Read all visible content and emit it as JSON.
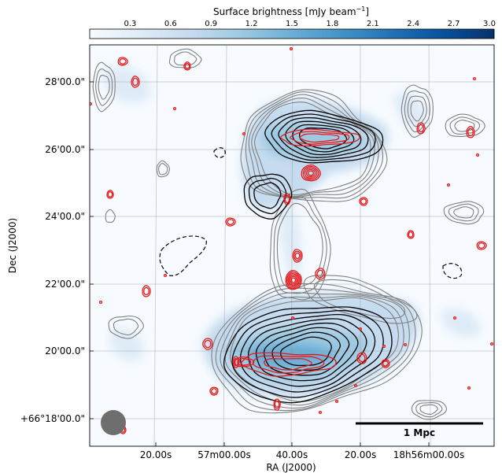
{
  "chart_data": {
    "type": "heatmap",
    "title": "",
    "colorbar": {
      "label": "Surface brightness [mJy beam",
      "label_sup": "−1",
      "label_end": "]",
      "ticks": [
        "0.3",
        "0.6",
        "0.9",
        "1.2",
        "1.5",
        "1.8",
        "2.1",
        "2.4",
        "2.7",
        "3.0"
      ],
      "min": 0.0,
      "max": 3.0,
      "colormap": [
        "#f7fbff",
        "#deebf7",
        "#c6dbef",
        "#9ecae1",
        "#6baed6",
        "#4292c6",
        "#2171b5",
        "#08519c",
        "#08306b"
      ]
    },
    "xlabel": "RA (J2000)",
    "ylabel": "Dec (J2000)",
    "x_ticks": [
      "20.00s",
      "57m00.00s",
      "40.00s",
      "20.00s",
      "18h56m00.00s"
    ],
    "y_ticks": [
      "+66°18'00.0\"",
      "20'00.0\"",
      "22'00.0\"",
      "24'00.0\"",
      "26'00.0\"",
      "28'00.0\""
    ],
    "grid": true,
    "scalebar_label": "1 Mpc",
    "contour_colors": {
      "radio_high": "#000000",
      "radio_low": "#808080",
      "radio_negative": "#000000",
      "xray_compact": "#e31a1c"
    },
    "beam_color": "#6e6e6e"
  }
}
